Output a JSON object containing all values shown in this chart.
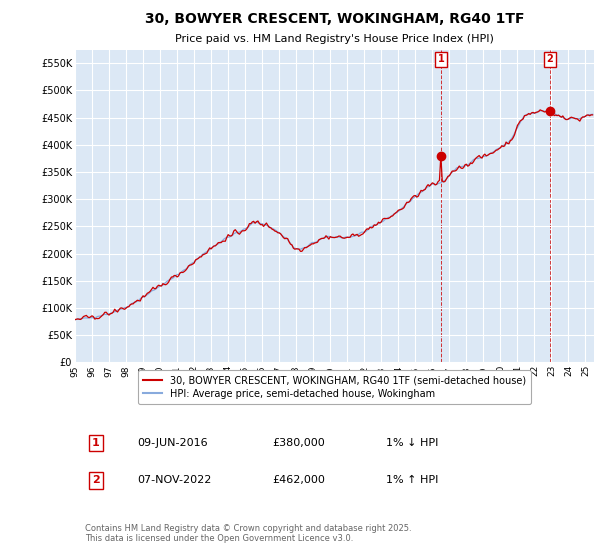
{
  "title": "30, BOWYER CRESCENT, WOKINGHAM, RG40 1TF",
  "subtitle": "Price paid vs. HM Land Registry's House Price Index (HPI)",
  "ylim": [
    0,
    575000
  ],
  "yticks": [
    0,
    50000,
    100000,
    150000,
    200000,
    250000,
    300000,
    350000,
    400000,
    450000,
    500000,
    550000
  ],
  "ytick_labels": [
    "£0",
    "£50K",
    "£100K",
    "£150K",
    "£200K",
    "£250K",
    "£300K",
    "£350K",
    "£400K",
    "£450K",
    "£500K",
    "£550K"
  ],
  "background_color": "#ffffff",
  "plot_bg_color": "#dce8f5",
  "grid_color": "#ffffff",
  "line_color_price": "#cc0000",
  "line_color_hpi": "#88aadd",
  "marker1_date_idx": 258,
  "marker1_price": 380000,
  "marker2_date_idx": 335,
  "marker2_price": 462000,
  "legend_label_price": "30, BOWYER CRESCENT, WOKINGHAM, RG40 1TF (semi-detached house)",
  "legend_label_hpi": "HPI: Average price, semi-detached house, Wokingham",
  "footnote": "Contains HM Land Registry data © Crown copyright and database right 2025.\nThis data is licensed under the Open Government Licence v3.0.",
  "table_row1": [
    "1",
    "09-JUN-2016",
    "£380,000",
    "1% ↓ HPI"
  ],
  "table_row2": [
    "2",
    "07-NOV-2022",
    "£462,000",
    "1% ↑ HPI"
  ],
  "xlim_start": 1995.0,
  "xlim_end": 2025.5
}
